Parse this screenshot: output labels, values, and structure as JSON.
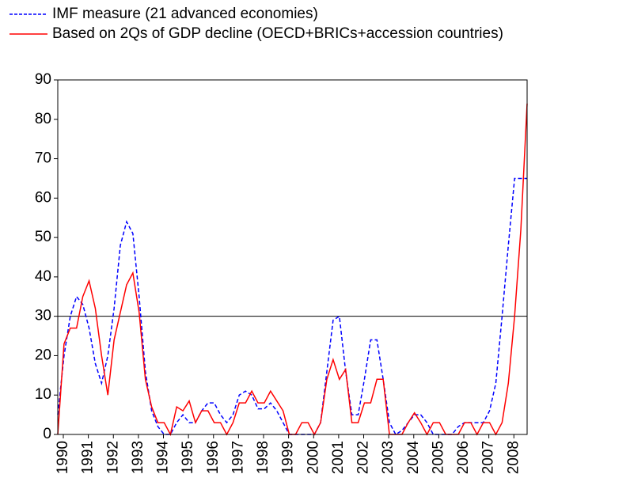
{
  "chart_data": {
    "type": "line",
    "categories": [
      "1990",
      null,
      null,
      null,
      "1991",
      null,
      null,
      null,
      "1992",
      null,
      null,
      null,
      "1993",
      null,
      null,
      null,
      "1994",
      null,
      null,
      null,
      "1995",
      null,
      null,
      null,
      "1996",
      null,
      null,
      null,
      "1997",
      null,
      null,
      null,
      "1998",
      null,
      null,
      null,
      "1999",
      null,
      null,
      null,
      "2000",
      null,
      null,
      null,
      "2001",
      null,
      null,
      null,
      "2002",
      null,
      null,
      null,
      "2003",
      null,
      null,
      null,
      "2004",
      null,
      null,
      null,
      "2005",
      null,
      null,
      null,
      "2006",
      null,
      null,
      null,
      "2007",
      null,
      null,
      null,
      "2008",
      null,
      null,
      null
    ],
    "series": [
      {
        "name": "IMF measure (21 advanced economies)",
        "color": "#0000ff",
        "dash": true,
        "values": [
          5,
          20,
          30,
          35,
          33,
          27,
          18,
          13,
          20,
          32,
          48,
          54,
          51,
          35,
          16,
          6,
          2,
          0,
          0,
          3,
          5,
          3,
          3,
          6,
          8,
          8,
          5,
          3,
          5,
          10,
          11,
          10,
          6.5,
          6.5,
          8,
          6,
          3,
          0,
          0,
          0,
          0,
          0,
          3,
          16,
          29,
          30,
          16,
          5,
          5,
          14,
          24,
          24,
          14,
          3,
          0,
          1,
          3,
          5,
          5,
          3,
          0,
          0,
          0,
          0,
          2,
          3,
          3,
          3,
          3,
          6,
          13,
          30,
          48,
          65,
          65,
          65
        ]
      },
      {
        "name": "Based on 2Qs of GDP decline (OECD+BRICs+accession countries)",
        "color": "#ff0000",
        "dash": false,
        "values": [
          0,
          23,
          27,
          27,
          35,
          39,
          32,
          20,
          10,
          24,
          31,
          38,
          41,
          31,
          14,
          7,
          3,
          3,
          0,
          7,
          6,
          8.5,
          3,
          6,
          6,
          3,
          3,
          0,
          3,
          8,
          8,
          11,
          8,
          8,
          11,
          8.5,
          6,
          0,
          0,
          3,
          3,
          0,
          3,
          14,
          19,
          14,
          16.5,
          3,
          3,
          8,
          8,
          14,
          14,
          0,
          0,
          0,
          3,
          5.5,
          3,
          0,
          3,
          3,
          0,
          0,
          0,
          3,
          3,
          0,
          3,
          3,
          0,
          3,
          13,
          30,
          52,
          84
        ]
      }
    ],
    "ylim": [
      0,
      90
    ],
    "yticks": [
      0,
      10,
      20,
      30,
      40,
      50,
      60,
      70,
      80,
      90
    ],
    "hline": 30,
    "grid": false
  }
}
